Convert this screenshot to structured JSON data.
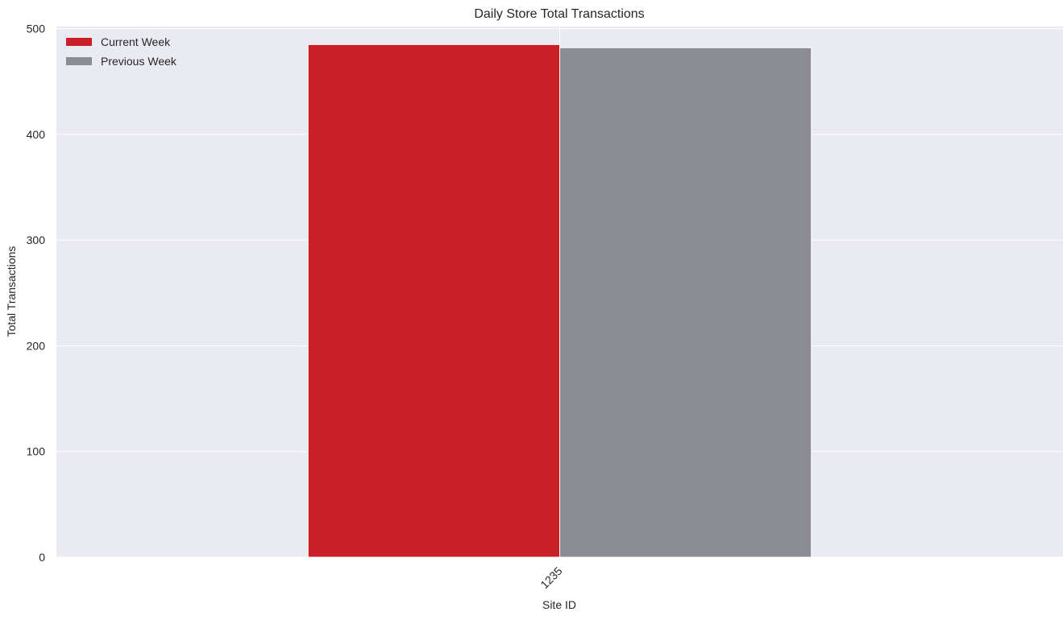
{
  "chart_data": {
    "type": "bar",
    "title": "Daily Store Total Transactions",
    "xlabel": "Site ID",
    "ylabel": "Total Transactions",
    "categories": [
      "1235"
    ],
    "series": [
      {
        "name": "Current Week",
        "values": [
          485
        ],
        "color": "#c82026"
      },
      {
        "name": "Previous Week",
        "values": [
          482
        ],
        "color": "#8c8d92"
      }
    ],
    "ylim": [
      0,
      502
    ],
    "yticks": [
      0,
      100,
      200,
      300,
      400,
      500
    ],
    "grid": true,
    "legend": "top-left",
    "background": "#eaeaf2"
  }
}
